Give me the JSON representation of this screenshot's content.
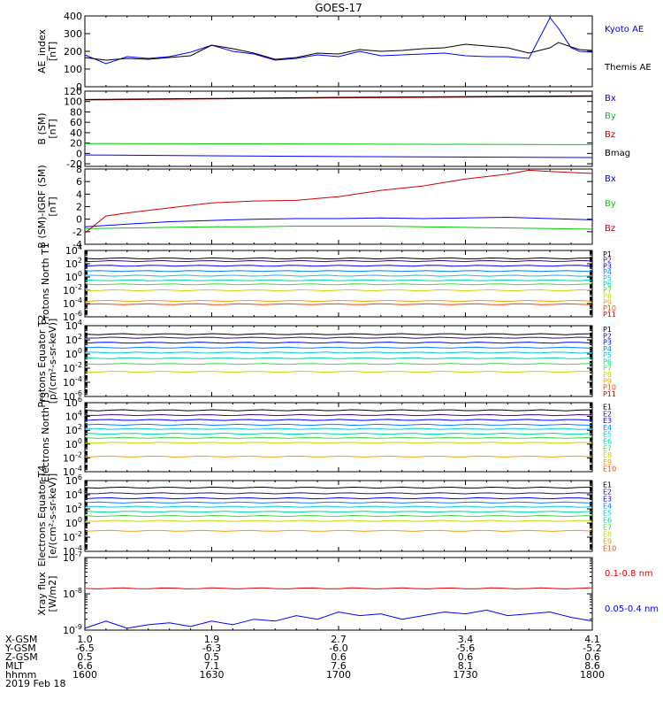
{
  "title": "GOES-17",
  "x_axis": {
    "tick_positions": [
      1600,
      1630,
      1700,
      1730,
      1800
    ],
    "rows": [
      {
        "label": "X-GSM",
        "values": [
          "1.0",
          "1.9",
          "2.7",
          "3.4",
          "4.1"
        ]
      },
      {
        "label": "Y-GSM",
        "values": [
          "-6.5",
          "-6.3",
          "-6.0",
          "-5.6",
          "-5.2"
        ]
      },
      {
        "label": "Z-GSM",
        "values": [
          "0.5",
          "0.5",
          "0.6",
          "0.6",
          "0.6"
        ]
      },
      {
        "label": "MLT",
        "values": [
          "6.6",
          "7.1",
          "7.6",
          "8.1",
          "8.6"
        ]
      },
      {
        "label": "hhmm",
        "values": [
          "1600",
          "1630",
          "1700",
          "1730",
          "1800"
        ]
      }
    ],
    "date": "2019 Feb 18"
  },
  "colors": {
    "black": "#000000",
    "blue": "#0000ff",
    "red": "#cc0000",
    "green": "#00cc00",
    "xray_red": "#e00000",
    "channel_colors": [
      "#000000",
      "#3a0a8a",
      "#0000ff",
      "#0080ff",
      "#00c8e0",
      "#00d8a0",
      "#40d840",
      "#c8d800",
      "#f0a000",
      "#ff4000",
      "#cc0000"
    ]
  },
  "chart_data": [
    {
      "type": "line",
      "panel": "ae",
      "ylabel": "AE_index [nT]",
      "ylim": [
        0,
        400
      ],
      "yscale": "linear",
      "yticks": [
        0,
        100,
        200,
        300,
        400
      ],
      "legend": [
        "Kyoto AE",
        "Themis AE"
      ],
      "series": [
        {
          "name": "Kyoto AE",
          "color": "#0000ff",
          "x": [
            1600,
            1605,
            1610,
            1615,
            1620,
            1625,
            1630,
            1635,
            1640,
            1645,
            1650,
            1655,
            1700,
            1705,
            1710,
            1715,
            1720,
            1725,
            1730,
            1735,
            1740,
            1745,
            1750,
            1752,
            1755,
            1757,
            1800
          ],
          "y": [
            180,
            130,
            170,
            160,
            170,
            195,
            235,
            200,
            185,
            150,
            160,
            180,
            170,
            200,
            175,
            180,
            185,
            190,
            175,
            170,
            170,
            160,
            390,
            330,
            220,
            200,
            195
          ]
        },
        {
          "name": "Themis AE",
          "color": "#000000",
          "x": [
            1600,
            1605,
            1610,
            1615,
            1620,
            1625,
            1630,
            1635,
            1640,
            1645,
            1650,
            1655,
            1700,
            1705,
            1710,
            1715,
            1720,
            1725,
            1730,
            1735,
            1740,
            1745,
            1750,
            1752,
            1755,
            1757,
            1800
          ],
          "y": [
            165,
            150,
            160,
            155,
            165,
            175,
            235,
            215,
            190,
            155,
            165,
            190,
            185,
            210,
            200,
            205,
            215,
            220,
            240,
            230,
            220,
            190,
            220,
            250,
            225,
            210,
            205
          ]
        }
      ]
    },
    {
      "type": "line",
      "panel": "bsm",
      "ylabel": "B (SM) [nT]",
      "ylim": [
        -25,
        120
      ],
      "yscale": "linear",
      "yticks": [
        -20,
        0,
        20,
        40,
        60,
        80,
        100,
        120
      ],
      "legend": [
        "Bx",
        "By",
        "Bz",
        "Bmag"
      ],
      "series": [
        {
          "name": "Bx",
          "color": "#0000ff",
          "x": [
            1600,
            1700,
            1800
          ],
          "y": [
            -3,
            -6,
            -8
          ]
        },
        {
          "name": "By",
          "color": "#00cc00",
          "x": [
            1600,
            1700,
            1800
          ],
          "y": [
            19,
            18,
            17
          ]
        },
        {
          "name": "Bz",
          "color": "#cc0000",
          "x": [
            1600,
            1700,
            1800
          ],
          "y": [
            103,
            107,
            110
          ]
        },
        {
          "name": "Bmag",
          "color": "#000000",
          "x": [
            1600,
            1700,
            1800
          ],
          "y": [
            104,
            108,
            111
          ]
        }
      ]
    },
    {
      "type": "line",
      "panel": "bigrf",
      "ylabel": "B (SM)-IGRF (SM) [nT]",
      "ylim": [
        -4,
        8
      ],
      "yscale": "linear",
      "yticks": [
        -4,
        -2,
        0,
        2,
        4,
        6,
        8
      ],
      "legend": [
        "Bx",
        "By",
        "Bz"
      ],
      "series": [
        {
          "name": "Bx",
          "color": "#0000ff",
          "x": [
            1600,
            1610,
            1620,
            1630,
            1640,
            1650,
            1700,
            1710,
            1720,
            1730,
            1740,
            1750,
            1800
          ],
          "y": [
            -1.2,
            -0.8,
            -0.4,
            -0.2,
            0.0,
            0.1,
            0.1,
            0.2,
            0.1,
            0.2,
            0.3,
            0.1,
            -0.1
          ]
        },
        {
          "name": "By",
          "color": "#00cc00",
          "x": [
            1600,
            1610,
            1620,
            1630,
            1640,
            1650,
            1700,
            1710,
            1720,
            1730,
            1740,
            1750,
            1800
          ],
          "y": [
            -1.5,
            -1.4,
            -1.3,
            -1.2,
            -1.2,
            -1.1,
            -1.1,
            -1.1,
            -1.2,
            -1.3,
            -1.4,
            -1.5,
            -1.6
          ]
        },
        {
          "name": "Bz",
          "color": "#cc0000",
          "x": [
            1600,
            1605,
            1610,
            1620,
            1630,
            1640,
            1650,
            1700,
            1710,
            1720,
            1730,
            1740,
            1745,
            1750,
            1800
          ],
          "y": [
            -2.2,
            0.5,
            1.0,
            1.8,
            2.6,
            2.9,
            3.0,
            3.6,
            4.6,
            5.3,
            6.4,
            7.2,
            7.8,
            7.6,
            7.3
          ]
        }
      ]
    },
    {
      "type": "line",
      "panel": "protons_t1",
      "ylabel": "Protons North T1",
      "ylim": [
        -6,
        4
      ],
      "yscale": "log",
      "yticks": [
        "10^4",
        "10^2",
        "10^0",
        "10^-2",
        "10^-4",
        "10^-6"
      ],
      "legend": [
        "P1",
        "P2",
        "P3",
        "P4",
        "P5",
        "P6",
        "P7",
        "P8",
        "P9",
        "P10",
        "P11"
      ],
      "series": [
        {
          "name": "P1",
          "log10_level": 2.8
        },
        {
          "name": "P2",
          "log10_level": 2.4
        },
        {
          "name": "P3",
          "log10_level": 1.7
        },
        {
          "name": "P4",
          "log10_level": 0.9
        },
        {
          "name": "P5",
          "log10_level": 0.2
        },
        {
          "name": "P6",
          "log10_level": -0.5
        },
        {
          "name": "P7",
          "log10_level": -1.1
        },
        {
          "name": "P8",
          "log10_level": -2.0
        },
        {
          "name": "P9",
          "log10_level": -3.6
        },
        {
          "name": "P10",
          "log10_level": -4.1
        }
      ]
    },
    {
      "type": "line",
      "panel": "protons_t2",
      "ylabel": "Protons Equator T2 [p/(cm²-s-sr-keV)]",
      "ylim": [
        -6,
        4
      ],
      "yscale": "log",
      "yticks": [
        "10^4",
        "10^2",
        "10^0",
        "10^-2",
        "10^-4",
        "10^-6"
      ],
      "legend": [
        "P1",
        "P2",
        "P3",
        "P4",
        "P5",
        "P6",
        "P7",
        "P8",
        "P9",
        "P10",
        "P11"
      ],
      "series": [
        {
          "name": "P1",
          "log10_level": 2.8
        },
        {
          "name": "P2",
          "log10_level": 2.3
        },
        {
          "name": "P3",
          "log10_level": 1.6
        },
        {
          "name": "P4",
          "log10_level": 0.9
        },
        {
          "name": "P5",
          "log10_level": 0.2
        },
        {
          "name": "P6",
          "log10_level": -0.6
        },
        {
          "name": "P7",
          "log10_level": -1.4
        },
        {
          "name": "P8",
          "log10_level": -2.5
        }
      ]
    },
    {
      "type": "line",
      "panel": "electrons_t3",
      "ylabel": "Electrons North T3",
      "ylim": [
        -4,
        6
      ],
      "yscale": "log",
      "yticks": [
        "10^6",
        "10^4",
        "10^2",
        "10^0",
        "10^-2",
        "10^-4"
      ],
      "legend": [
        "E1",
        "E2",
        "E3",
        "E4",
        "E5",
        "E6",
        "E7",
        "E8",
        "E9",
        "E10"
      ],
      "series": [
        {
          "name": "E1",
          "log10_level": 4.9
        },
        {
          "name": "E2",
          "log10_level": 4.2
        },
        {
          "name": "E3",
          "log10_level": 3.5
        },
        {
          "name": "E4",
          "log10_level": 2.8
        },
        {
          "name": "E5",
          "log10_level": 2.2
        },
        {
          "name": "E6",
          "log10_level": 1.5
        },
        {
          "name": "E7",
          "log10_level": 0.9
        },
        {
          "name": "E8",
          "log10_level": 0.2
        },
        {
          "name": "E9",
          "log10_level": -1.8
        }
      ]
    },
    {
      "type": "line",
      "panel": "electrons_t4",
      "ylabel": "Electrons Equator T4 [e/(cm²-s-sr-keV)]",
      "ylim": [
        -4,
        6
      ],
      "yscale": "log",
      "yticks": [
        "10^6",
        "10^4",
        "10^2",
        "10^0",
        "10^-2",
        "10^-4"
      ],
      "legend": [
        "E1",
        "E2",
        "E3",
        "E4",
        "E5",
        "E6",
        "E7",
        "E8",
        "E9",
        "E10"
      ],
      "series": [
        {
          "name": "E1",
          "log10_level": 5.0
        },
        {
          "name": "E2",
          "log10_level": 4.2
        },
        {
          "name": "E3",
          "log10_level": 3.5
        },
        {
          "name": "E4",
          "log10_level": 2.9
        },
        {
          "name": "E5",
          "log10_level": 2.3
        },
        {
          "name": "E6",
          "log10_level": 1.6
        },
        {
          "name": "E7",
          "log10_level": 1.0
        },
        {
          "name": "E8",
          "log10_level": 0.3
        },
        {
          "name": "E9",
          "log10_level": -1.1
        }
      ]
    },
    {
      "type": "line",
      "panel": "xray",
      "ylabel": "Xray flux [W/m2]",
      "ylim": [
        -9,
        -7
      ],
      "yscale": "log",
      "yticks": [
        "10^-7",
        "10^-8",
        "10^-9"
      ],
      "legend": [
        "0.1-0.8 nm",
        "0.05-0.4 nm"
      ],
      "series": [
        {
          "name": "0.1-0.8 nm",
          "color": "#e00000",
          "log10_level": -7.85
        },
        {
          "name": "0.05-0.4 nm",
          "color": "#0000ff",
          "x": [
            1600,
            1605,
            1610,
            1615,
            1620,
            1625,
            1630,
            1635,
            1640,
            1645,
            1650,
            1655,
            1700,
            1705,
            1710,
            1715,
            1720,
            1725,
            1730,
            1735,
            1740,
            1745,
            1750,
            1755,
            1800
          ],
          "y": [
            -8.95,
            -8.75,
            -8.95,
            -8.85,
            -8.8,
            -8.9,
            -8.75,
            -8.85,
            -8.7,
            -8.75,
            -8.6,
            -8.7,
            -8.5,
            -8.6,
            -8.55,
            -8.7,
            -8.6,
            -8.5,
            -8.55,
            -8.45,
            -8.6,
            -8.55,
            -8.5,
            -8.65,
            -8.75
          ]
        }
      ]
    }
  ]
}
